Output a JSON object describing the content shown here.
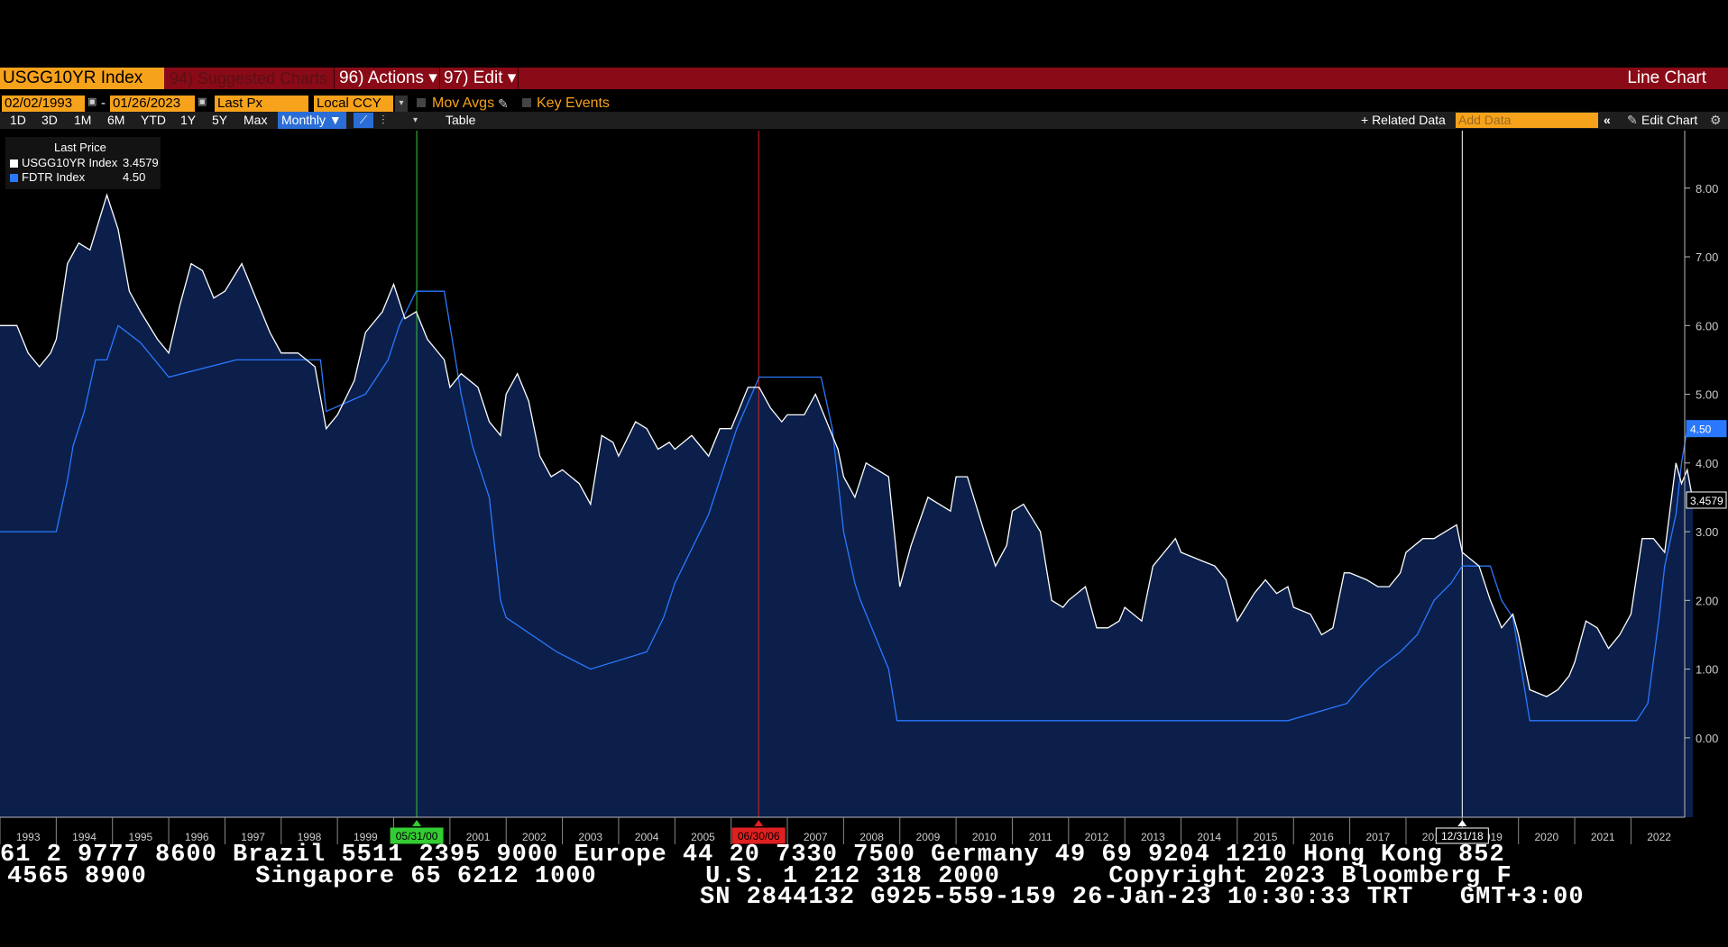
{
  "header": {
    "ticker": "USGG10YR Index",
    "suggested_label": "94) Suggested Charts",
    "actions_label": "96) Actions ▾",
    "edit_label": "97) Edit ▾",
    "chart_type": "Line Chart"
  },
  "controls": {
    "start_date": "02/02/1993",
    "end_date": "01/26/2023",
    "dash": "-",
    "field": "Last Px",
    "currency": "Local CCY",
    "mov_avgs": "Mov Avgs",
    "key_events": "Key Events",
    "periods": [
      "1D",
      "3D",
      "1M",
      "6M",
      "YTD",
      "1Y",
      "5Y",
      "Max"
    ],
    "frequency": "Monthly ▼",
    "table_label": "Table",
    "related_data": "+ Related Data",
    "add_data_placeholder": "Add Data",
    "edit_chart": "Edit Chart"
  },
  "legend": {
    "title": "Last Price",
    "items": [
      {
        "label": "USGG10YR Index",
        "value": "3.4579",
        "color": "#ffffff"
      },
      {
        "label": "FDTR Index",
        "value": "4.50",
        "color": "#2a78ff"
      }
    ]
  },
  "colors": {
    "background": "#000000",
    "fill": "#0b1f4a",
    "accent": "#f7a21b",
    "header": "#8a0a17"
  },
  "chart_data": {
    "type": "line",
    "x_range": [
      1993.0,
      2023.1
    ],
    "ylim": [
      -0.5,
      8.6
    ],
    "y_ticks": [
      "0.00",
      "1.00",
      "2.00",
      "3.00",
      "4.00",
      "5.00",
      "6.00",
      "7.00",
      "8.00"
    ],
    "x_ticks": [
      "1993",
      "1994",
      "1995",
      "1996",
      "1997",
      "1998",
      "1999",
      "2000",
      "2001",
      "2002",
      "2003",
      "2004",
      "2005",
      "2006",
      "2007",
      "2008",
      "2009",
      "2010",
      "2011",
      "2012",
      "2013",
      "2014",
      "2015",
      "2016",
      "2017",
      "2018",
      "2019",
      "2020",
      "2021",
      "2022"
    ],
    "last_value_labels": [
      "4.50",
      "3.4579"
    ],
    "event_lines": [
      {
        "date": "05/31/00",
        "x": 2000.41,
        "color": "#33cc33"
      },
      {
        "date": "06/30/06",
        "x": 2006.49,
        "color": "#e02020"
      },
      {
        "date": "12/31/18",
        "x": 2019.0,
        "color": "#ffffff"
      }
    ],
    "series": [
      {
        "name": "USGG10YR Index",
        "color": "#ffffff",
        "points": [
          [
            1993.0,
            6.0
          ],
          [
            1993.3,
            6.0
          ],
          [
            1993.5,
            5.6
          ],
          [
            1993.7,
            5.4
          ],
          [
            1993.9,
            5.6
          ],
          [
            1994.0,
            5.8
          ],
          [
            1994.2,
            6.9
          ],
          [
            1994.4,
            7.2
          ],
          [
            1994.6,
            7.1
          ],
          [
            1994.9,
            7.9
          ],
          [
            1995.1,
            7.4
          ],
          [
            1995.3,
            6.5
          ],
          [
            1995.5,
            6.2
          ],
          [
            1995.8,
            5.8
          ],
          [
            1996.0,
            5.6
          ],
          [
            1996.2,
            6.3
          ],
          [
            1996.4,
            6.9
          ],
          [
            1996.6,
            6.8
          ],
          [
            1996.8,
            6.4
          ],
          [
            1997.0,
            6.5
          ],
          [
            1997.3,
            6.9
          ],
          [
            1997.5,
            6.5
          ],
          [
            1997.8,
            5.9
          ],
          [
            1998.0,
            5.6
          ],
          [
            1998.3,
            5.6
          ],
          [
            1998.6,
            5.4
          ],
          [
            1998.8,
            4.5
          ],
          [
            1999.0,
            4.7
          ],
          [
            1999.3,
            5.2
          ],
          [
            1999.5,
            5.9
          ],
          [
            1999.8,
            6.2
          ],
          [
            2000.0,
            6.6
          ],
          [
            2000.2,
            6.1
          ],
          [
            2000.4,
            6.2
          ],
          [
            2000.6,
            5.8
          ],
          [
            2000.9,
            5.5
          ],
          [
            2001.0,
            5.1
          ],
          [
            2001.2,
            5.3
          ],
          [
            2001.5,
            5.1
          ],
          [
            2001.7,
            4.6
          ],
          [
            2001.9,
            4.4
          ],
          [
            2002.0,
            5.0
          ],
          [
            2002.2,
            5.3
          ],
          [
            2002.4,
            4.9
          ],
          [
            2002.6,
            4.1
          ],
          [
            2002.8,
            3.8
          ],
          [
            2003.0,
            3.9
          ],
          [
            2003.3,
            3.7
          ],
          [
            2003.5,
            3.4
          ],
          [
            2003.7,
            4.4
          ],
          [
            2003.9,
            4.3
          ],
          [
            2004.0,
            4.1
          ],
          [
            2004.3,
            4.6
          ],
          [
            2004.5,
            4.5
          ],
          [
            2004.7,
            4.2
          ],
          [
            2004.9,
            4.3
          ],
          [
            2005.0,
            4.2
          ],
          [
            2005.3,
            4.4
          ],
          [
            2005.6,
            4.1
          ],
          [
            2005.8,
            4.5
          ],
          [
            2006.0,
            4.5
          ],
          [
            2006.3,
            5.1
          ],
          [
            2006.5,
            5.1
          ],
          [
            2006.7,
            4.8
          ],
          [
            2006.9,
            4.6
          ],
          [
            2007.0,
            4.7
          ],
          [
            2007.3,
            4.7
          ],
          [
            2007.5,
            5.0
          ],
          [
            2007.7,
            4.6
          ],
          [
            2007.9,
            4.2
          ],
          [
            2008.0,
            3.8
          ],
          [
            2008.2,
            3.5
          ],
          [
            2008.4,
            4.0
          ],
          [
            2008.6,
            3.9
          ],
          [
            2008.8,
            3.8
          ],
          [
            2009.0,
            2.2
          ],
          [
            2009.2,
            2.8
          ],
          [
            2009.5,
            3.5
          ],
          [
            2009.7,
            3.4
          ],
          [
            2009.9,
            3.3
          ],
          [
            2010.0,
            3.8
          ],
          [
            2010.2,
            3.8
          ],
          [
            2010.5,
            3.0
          ],
          [
            2010.7,
            2.5
          ],
          [
            2010.9,
            2.8
          ],
          [
            2011.0,
            3.3
          ],
          [
            2011.2,
            3.4
          ],
          [
            2011.5,
            3.0
          ],
          [
            2011.7,
            2.0
          ],
          [
            2011.9,
            1.9
          ],
          [
            2012.0,
            2.0
          ],
          [
            2012.3,
            2.2
          ],
          [
            2012.5,
            1.6
          ],
          [
            2012.7,
            1.6
          ],
          [
            2012.9,
            1.7
          ],
          [
            2013.0,
            1.9
          ],
          [
            2013.3,
            1.7
          ],
          [
            2013.5,
            2.5
          ],
          [
            2013.7,
            2.7
          ],
          [
            2013.9,
            2.9
          ],
          [
            2014.0,
            2.7
          ],
          [
            2014.3,
            2.6
          ],
          [
            2014.6,
            2.5
          ],
          [
            2014.8,
            2.3
          ],
          [
            2015.0,
            1.7
          ],
          [
            2015.3,
            2.1
          ],
          [
            2015.5,
            2.3
          ],
          [
            2015.7,
            2.1
          ],
          [
            2015.9,
            2.2
          ],
          [
            2016.0,
            1.9
          ],
          [
            2016.3,
            1.8
          ],
          [
            2016.5,
            1.5
          ],
          [
            2016.7,
            1.6
          ],
          [
            2016.9,
            2.4
          ],
          [
            2017.0,
            2.4
          ],
          [
            2017.3,
            2.3
          ],
          [
            2017.5,
            2.2
          ],
          [
            2017.7,
            2.2
          ],
          [
            2017.9,
            2.4
          ],
          [
            2018.0,
            2.7
          ],
          [
            2018.3,
            2.9
          ],
          [
            2018.5,
            2.9
          ],
          [
            2018.7,
            3.0
          ],
          [
            2018.9,
            3.1
          ],
          [
            2019.0,
            2.7
          ],
          [
            2019.3,
            2.5
          ],
          [
            2019.5,
            2.0
          ],
          [
            2019.7,
            1.6
          ],
          [
            2019.9,
            1.8
          ],
          [
            2020.0,
            1.5
          ],
          [
            2020.2,
            0.7
          ],
          [
            2020.5,
            0.6
          ],
          [
            2020.7,
            0.7
          ],
          [
            2020.9,
            0.9
          ],
          [
            2021.0,
            1.1
          ],
          [
            2021.2,
            1.7
          ],
          [
            2021.4,
            1.6
          ],
          [
            2021.6,
            1.3
          ],
          [
            2021.8,
            1.5
          ],
          [
            2022.0,
            1.8
          ],
          [
            2022.2,
            2.9
          ],
          [
            2022.4,
            2.9
          ],
          [
            2022.6,
            2.7
          ],
          [
            2022.8,
            4.0
          ],
          [
            2022.9,
            3.7
          ],
          [
            2023.0,
            3.9
          ],
          [
            2023.1,
            3.46
          ]
        ]
      },
      {
        "name": "FDTR Index",
        "color": "#2a78ff",
        "points": [
          [
            1993.0,
            3.0
          ],
          [
            1994.0,
            3.0
          ],
          [
            1994.2,
            3.75
          ],
          [
            1994.3,
            4.25
          ],
          [
            1994.5,
            4.75
          ],
          [
            1994.7,
            5.5
          ],
          [
            1994.9,
            5.5
          ],
          [
            1995.1,
            6.0
          ],
          [
            1995.5,
            5.75
          ],
          [
            1996.0,
            5.25
          ],
          [
            1997.2,
            5.5
          ],
          [
            1998.7,
            5.5
          ],
          [
            1998.8,
            4.75
          ],
          [
            1999.5,
            5.0
          ],
          [
            1999.7,
            5.25
          ],
          [
            1999.9,
            5.5
          ],
          [
            2000.1,
            6.0
          ],
          [
            2000.4,
            6.5
          ],
          [
            2000.9,
            6.5
          ],
          [
            2001.0,
            6.0
          ],
          [
            2001.2,
            5.0
          ],
          [
            2001.4,
            4.25
          ],
          [
            2001.7,
            3.5
          ],
          [
            2001.9,
            2.0
          ],
          [
            2002.0,
            1.75
          ],
          [
            2002.9,
            1.25
          ],
          [
            2003.5,
            1.0
          ],
          [
            2004.5,
            1.25
          ],
          [
            2004.8,
            1.75
          ],
          [
            2005.0,
            2.25
          ],
          [
            2005.3,
            2.75
          ],
          [
            2005.6,
            3.25
          ],
          [
            2005.9,
            4.0
          ],
          [
            2006.1,
            4.5
          ],
          [
            2006.5,
            5.25
          ],
          [
            2007.6,
            5.25
          ],
          [
            2007.8,
            4.5
          ],
          [
            2008.0,
            3.0
          ],
          [
            2008.2,
            2.25
          ],
          [
            2008.3,
            2.0
          ],
          [
            2008.8,
            1.0
          ],
          [
            2008.95,
            0.25
          ],
          [
            2015.9,
            0.25
          ],
          [
            2016.95,
            0.5
          ],
          [
            2017.2,
            0.75
          ],
          [
            2017.5,
            1.0
          ],
          [
            2017.9,
            1.25
          ],
          [
            2018.2,
            1.5
          ],
          [
            2018.5,
            2.0
          ],
          [
            2018.8,
            2.25
          ],
          [
            2019.0,
            2.5
          ],
          [
            2019.5,
            2.5
          ],
          [
            2019.7,
            2.0
          ],
          [
            2019.9,
            1.75
          ],
          [
            2020.2,
            0.25
          ],
          [
            2022.1,
            0.25
          ],
          [
            2022.3,
            0.5
          ],
          [
            2022.5,
            1.75
          ],
          [
            2022.6,
            2.5
          ],
          [
            2022.8,
            3.25
          ],
          [
            2022.9,
            4.0
          ],
          [
            2023.0,
            4.5
          ],
          [
            2023.1,
            4.5
          ]
        ]
      }
    ]
  },
  "footer": {
    "line1": "61 2 9777 8600 Brazil 5511 2395 9000 Europe 44 20 7330 7500 Germany 49 69 9204 1210 Hong Kong 852",
    "line2": "4565 8900       Singapore 65 6212 1000       U.S. 1 212 318 2000       Copyright 2023 Bloomberg F",
    "line3": "SN 2844132 G925-559-159 26-Jan-23 10:30:33 TRT   GMT+3:00"
  }
}
